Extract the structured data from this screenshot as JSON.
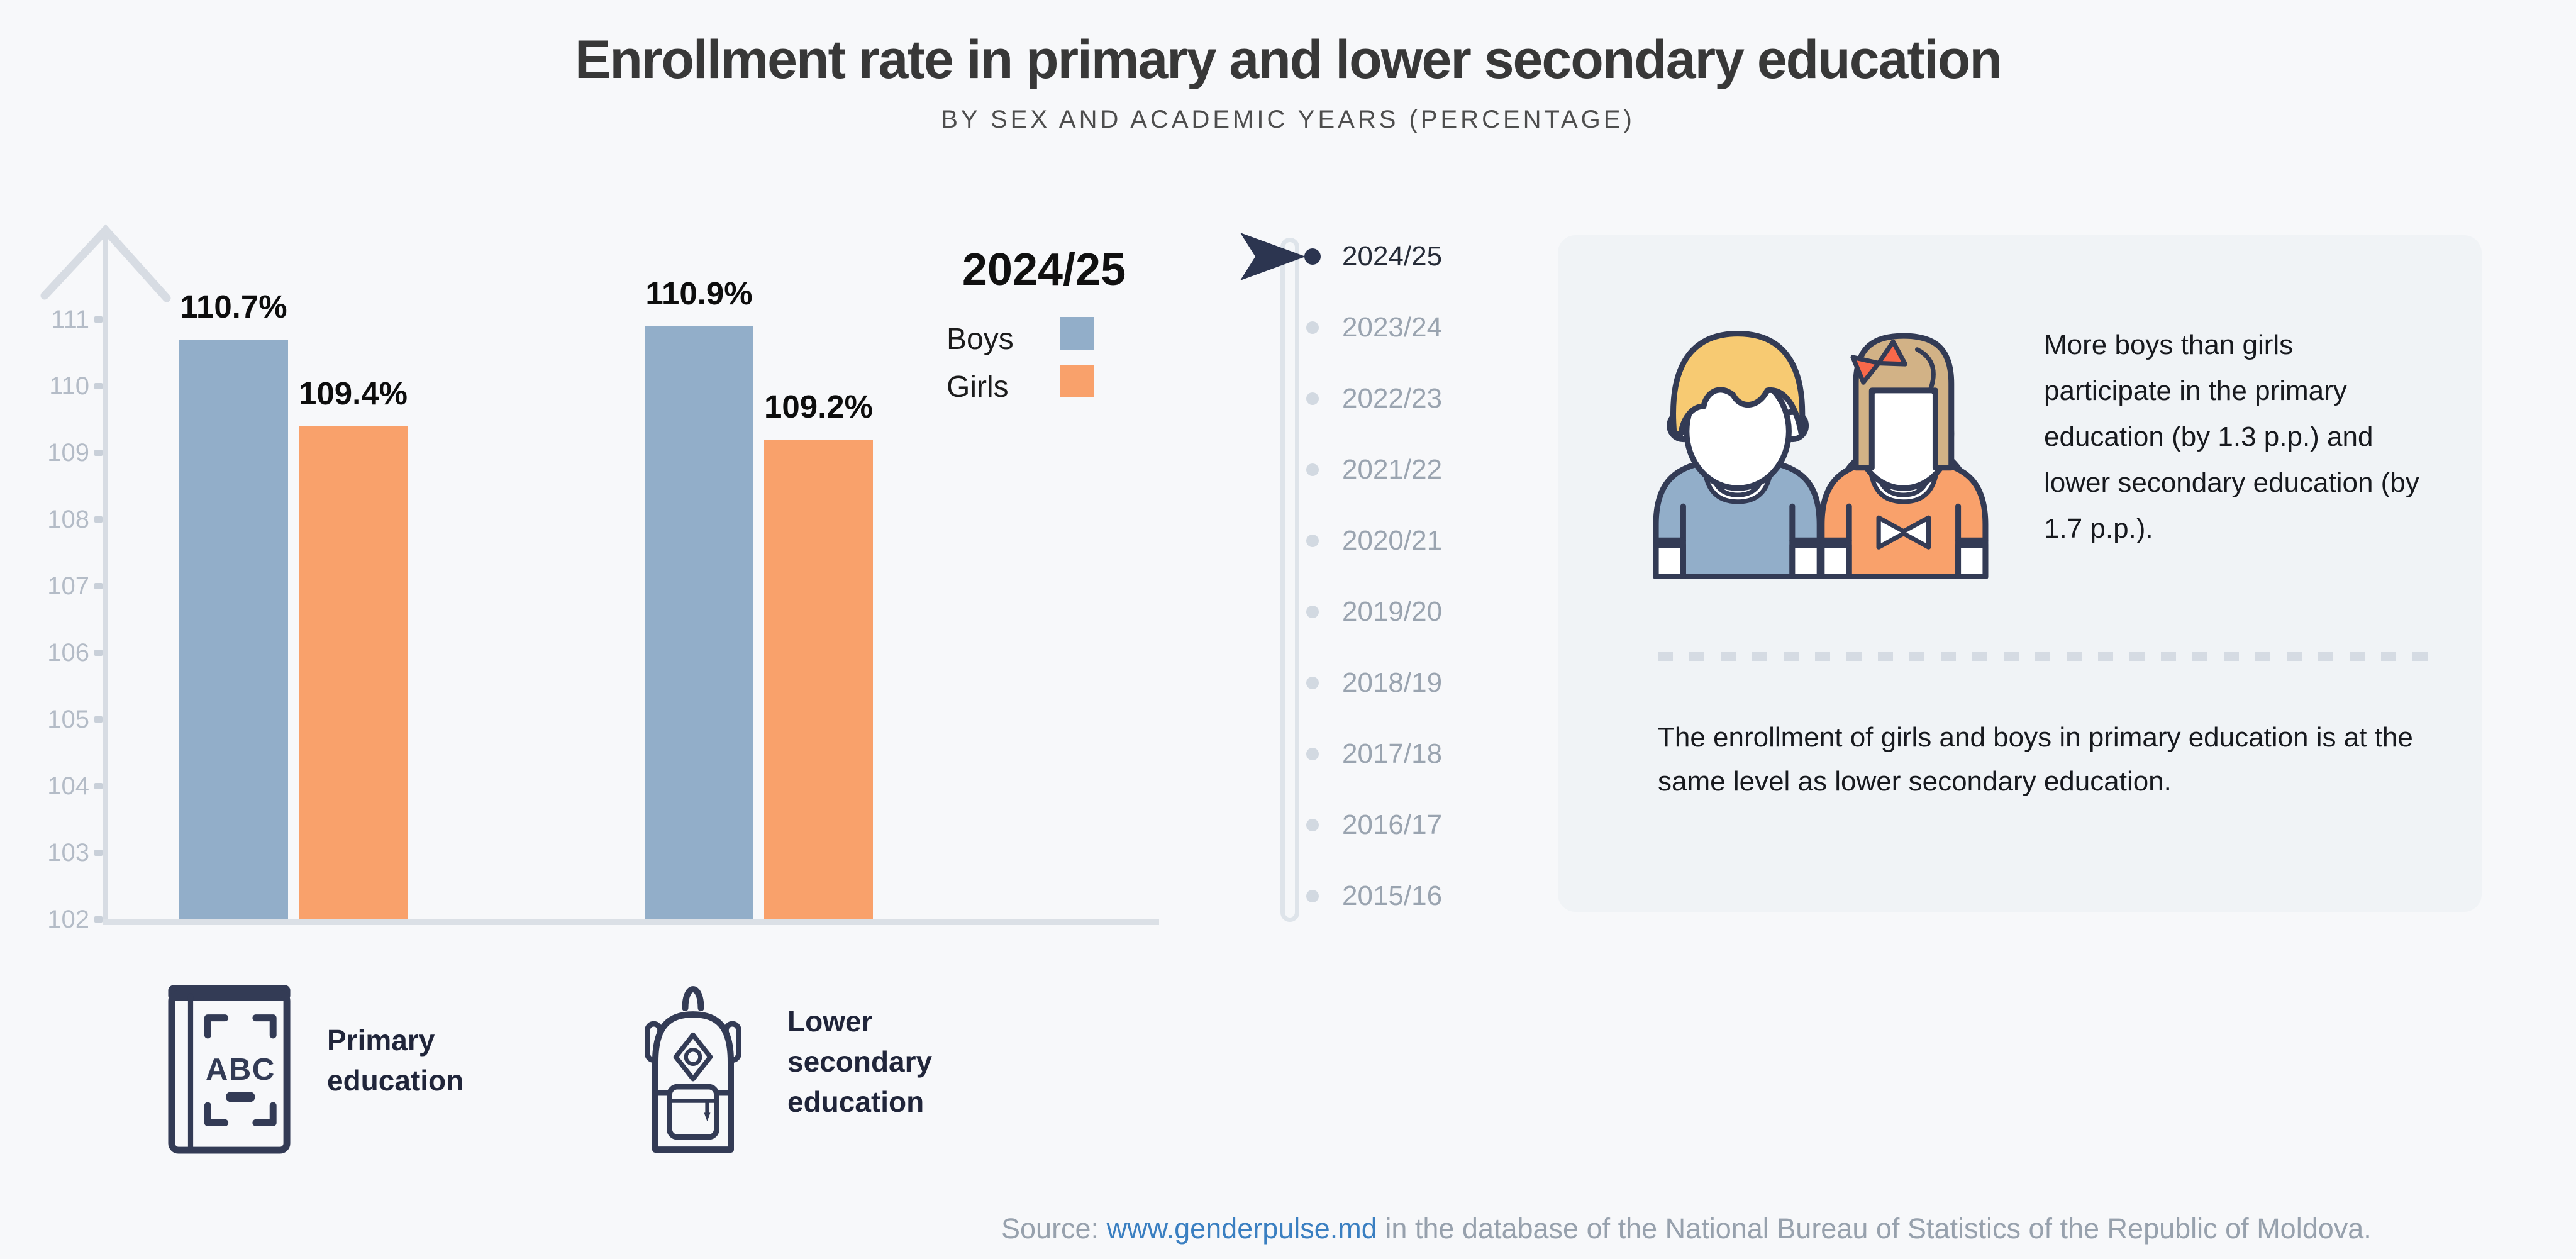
{
  "header": {
    "title": "Enrollment rate in primary and lower secondary education",
    "subtitle": "BY SEX AND ACADEMIC YEARS (PERCENTAGE)"
  },
  "chart_data": {
    "type": "bar",
    "title": "Enrollment rate in primary and lower secondary education",
    "subtitle": "BY SEX AND ACADEMIC YEARS (PERCENTAGE)",
    "categories": [
      "Primary education",
      "Lower secondary education"
    ],
    "series": [
      {
        "name": "Boys",
        "color": "#92AEC9",
        "values": [
          110.7,
          110.9
        ]
      },
      {
        "name": "Girls",
        "color": "#F9A16B",
        "values": [
          109.4,
          109.2
        ]
      }
    ],
    "value_suffix": "%",
    "ylim": [
      102,
      111
    ],
    "y_ticks": [
      111,
      110,
      109,
      108,
      107,
      106,
      105,
      104,
      103,
      102
    ],
    "grid": false,
    "legend_position": "right",
    "axis_color": "#D7DCE3",
    "tick_label_color": "#B4BCC7"
  },
  "legend": {
    "year_label": "2024/25"
  },
  "timeline": {
    "selected": "2024/25",
    "years": [
      "2024/25",
      "2023/24",
      "2022/23",
      "2021/22",
      "2020/21",
      "2019/20",
      "2018/19",
      "2017/18",
      "2016/17",
      "2015/16"
    ]
  },
  "panel": {
    "insight_primary": "More boys than girls participate in the primary education (by 1.3 p.p.) and lower secondary education (by 1.7 p.p.).",
    "insight_secondary": "The enrollment of girls and boys in primary education is at the same level as lower secondary education."
  },
  "category_labels": [
    {
      "icon": "book-icon",
      "label": "Primary education"
    },
    {
      "icon": "backpack-icon",
      "label": "Lower secondary education"
    }
  ],
  "footer": {
    "source_prefix": "Source: ",
    "link": "www.genderpulse.md",
    "source_suffix": " in the database of the National Bureau of Statistics of the Republic of Moldova."
  }
}
